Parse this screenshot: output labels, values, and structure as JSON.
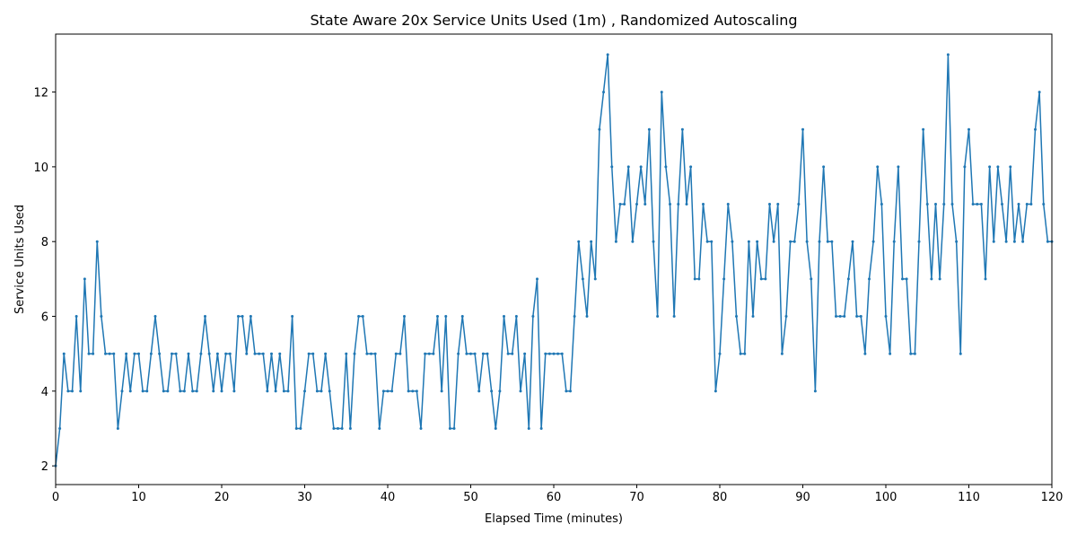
{
  "chart_data": {
    "type": "line",
    "title": "State Aware 20x Service Units Used (1m) , Randomized Autoscaling",
    "x_label": "Elapsed Time (minutes)",
    "y_label": "Service Units Used",
    "x": [
      0,
      0.5,
      1,
      1.5,
      2,
      2.5,
      3,
      3.5,
      4,
      4.5,
      5,
      5.5,
      6,
      6.5,
      7,
      7.5,
      8,
      8.5,
      9,
      9.5,
      10,
      10.5,
      11,
      11.5,
      12,
      12.5,
      13,
      13.5,
      14,
      14.5,
      15,
      15.5,
      16,
      16.5,
      17,
      17.5,
      18,
      18.5,
      19,
      19.5,
      20,
      20.5,
      21,
      21.5,
      22,
      22.5,
      23,
      23.5,
      24,
      24.5,
      25,
      25.5,
      26,
      26.5,
      27,
      27.5,
      28,
      28.5,
      29,
      29.5,
      30,
      30.5,
      31,
      31.5,
      32,
      32.5,
      33,
      33.5,
      34,
      34.5,
      35,
      35.5,
      36,
      36.5,
      37,
      37.5,
      38,
      38.5,
      39,
      39.5,
      40,
      40.5,
      41,
      41.5,
      42,
      42.5,
      43,
      43.5,
      44,
      44.5,
      45,
      45.5,
      46,
      46.5,
      47,
      47.5,
      48,
      48.5,
      49,
      49.5,
      50,
      50.5,
      51,
      51.5,
      52,
      52.5,
      53,
      53.5,
      54,
      54.5,
      55,
      55.5,
      56,
      56.5,
      57,
      57.5,
      58,
      58.5,
      59,
      59.5,
      60,
      60.5,
      61,
      61.5,
      62,
      62.5,
      63,
      63.5,
      64,
      64.5,
      65,
      65.5,
      66,
      66.5,
      67,
      67.5,
      68,
      68.5,
      69,
      69.5,
      70,
      70.5,
      71,
      71.5,
      72,
      72.5,
      73,
      73.5,
      74,
      74.5,
      75,
      75.5,
      76,
      76.5,
      77,
      77.5,
      78,
      78.5,
      79,
      79.5,
      80,
      80.5,
      81,
      81.5,
      82,
      82.5,
      83,
      83.5,
      84,
      84.5,
      85,
      85.5,
      86,
      86.5,
      87,
      87.5,
      88,
      88.5,
      89,
      89.5,
      90,
      90.5,
      91,
      91.5,
      92,
      92.5,
      93,
      93.5,
      94,
      94.5,
      95,
      95.5,
      96,
      96.5,
      97,
      97.5,
      98,
      98.5,
      99,
      99.5,
      100,
      100.5,
      101,
      101.5,
      102,
      102.5,
      103,
      103.5,
      104,
      104.5,
      105,
      105.5,
      106,
      106.5,
      107,
      107.5,
      108,
      108.5,
      109,
      109.5,
      110,
      110.5,
      111,
      111.5,
      112,
      112.5,
      113,
      113.5,
      114,
      114.5,
      115,
      115.5,
      116,
      116.5,
      117,
      117.5,
      118,
      118.5,
      119,
      119.5,
      120
    ],
    "series": [
      {
        "color": "#1f77b4",
        "values": [
          2,
          3,
          5,
          4,
          4,
          6,
          4,
          7,
          5,
          5,
          8,
          6,
          5,
          5,
          5,
          3,
          4,
          5,
          4,
          5,
          5,
          4,
          4,
          5,
          6,
          5,
          4,
          4,
          5,
          5,
          4,
          4,
          5,
          4,
          4,
          5,
          6,
          5,
          4,
          5,
          4,
          5,
          5,
          4,
          6,
          6,
          5,
          6,
          5,
          5,
          5,
          4,
          5,
          4,
          5,
          4,
          4,
          6,
          3,
          3,
          4,
          5,
          5,
          4,
          4,
          5,
          4,
          3,
          3,
          3,
          5,
          3,
          5,
          6,
          6,
          5,
          5,
          5,
          3,
          4,
          4,
          4,
          5,
          5,
          6,
          4,
          4,
          4,
          3,
          5,
          5,
          5,
          6,
          4,
          6,
          3,
          3,
          5,
          6,
          5,
          5,
          5,
          4,
          5,
          5,
          4,
          3,
          4,
          6,
          5,
          5,
          6,
          4,
          5,
          3,
          6,
          7,
          3,
          5,
          5,
          5,
          5,
          5,
          4,
          4,
          6,
          8,
          7,
          6,
          8,
          7,
          11,
          12,
          13,
          10,
          8,
          9,
          9,
          10,
          8,
          9,
          10,
          9,
          11,
          8,
          6,
          12,
          10,
          9,
          6,
          9,
          11,
          9,
          10,
          7,
          7,
          9,
          8,
          8,
          4,
          5,
          7,
          9,
          8,
          6,
          5,
          5,
          8,
          6,
          8,
          7,
          7,
          9,
          8,
          9,
          5,
          6,
          8,
          8,
          9,
          11,
          8,
          7,
          4,
          8,
          10,
          8,
          8,
          6,
          6,
          6,
          7,
          8,
          6,
          6,
          5,
          7,
          8,
          10,
          9,
          6,
          5,
          8,
          10,
          7,
          7,
          5,
          5,
          8,
          11,
          9,
          7,
          9,
          7,
          9,
          13,
          9,
          8,
          5,
          10,
          11,
          9,
          9,
          9,
          7,
          10,
          8,
          10,
          9,
          8,
          10,
          8,
          9,
          8,
          9,
          9,
          11,
          12,
          9,
          8,
          8
        ]
      }
    ],
    "xlim": [
      0,
      120
    ],
    "ylim": [
      1.5,
      13.55
    ],
    "xticks": [
      0,
      10,
      20,
      30,
      40,
      50,
      60,
      70,
      80,
      90,
      100,
      110,
      120
    ],
    "yticks": [
      2,
      4,
      6,
      8,
      10,
      12
    ]
  }
}
